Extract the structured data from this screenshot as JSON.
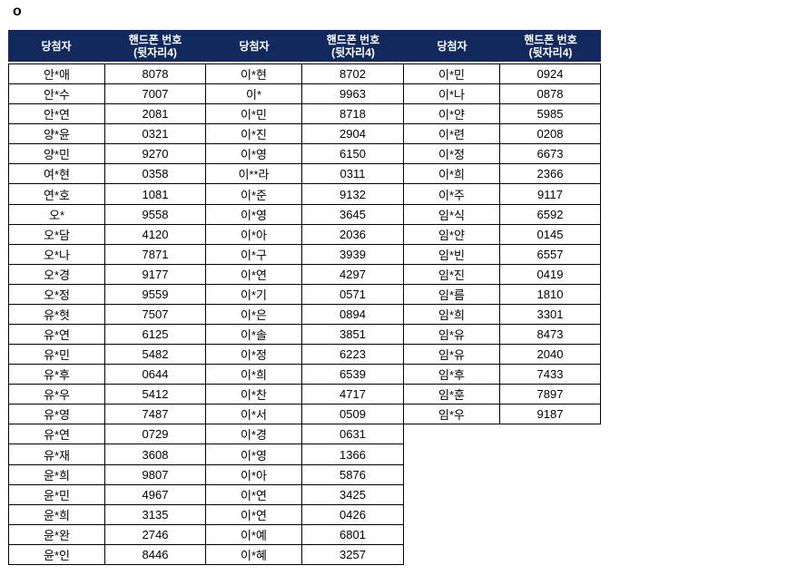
{
  "page": {
    "bullet": "o"
  },
  "table": {
    "header": {
      "winner_label": "당첨자",
      "phone_label_line1": "핸드폰 번호",
      "phone_label_line2": "(뒷자리4)"
    },
    "colors": {
      "header_bg": "#12295E",
      "header_text": "#FFFFFF",
      "border": "#000000",
      "body_text": "#000000"
    },
    "groups": [
      {
        "rows": [
          [
            "안*애",
            "8078"
          ],
          [
            "안*수",
            "7007"
          ],
          [
            "안*연",
            "2081"
          ],
          [
            "양*윤",
            "0321"
          ],
          [
            "양*민",
            "9270"
          ],
          [
            "여*현",
            "0358"
          ],
          [
            "연*호",
            "1081"
          ],
          [
            "오*",
            "9558"
          ],
          [
            "오*담",
            "4120"
          ],
          [
            "오*나",
            "7871"
          ],
          [
            "오*경",
            "9177"
          ],
          [
            "오*정",
            "9559"
          ],
          [
            "유*혓",
            "7507"
          ],
          [
            "유*연",
            "6125"
          ],
          [
            "유*민",
            "5482"
          ],
          [
            "유*후",
            "0644"
          ],
          [
            "유*우",
            "5412"
          ],
          [
            "유*영",
            "7487"
          ],
          [
            "유*연",
            "0729"
          ],
          [
            "유*재",
            "3608"
          ],
          [
            "윤*희",
            "9807"
          ],
          [
            "윤*민",
            "4967"
          ],
          [
            "윤*희",
            "3135"
          ],
          [
            "윤*완",
            "2746"
          ],
          [
            "윤*인",
            "8446"
          ]
        ]
      },
      {
        "rows": [
          [
            "이*현",
            "8702"
          ],
          [
            "이*",
            "9963"
          ],
          [
            "이*민",
            "8718"
          ],
          [
            "이*진",
            "2904"
          ],
          [
            "이*영",
            "6150"
          ],
          [
            "이**라",
            "0311"
          ],
          [
            "이*준",
            "9132"
          ],
          [
            "이*영",
            "3645"
          ],
          [
            "이*아",
            "2036"
          ],
          [
            "이*구",
            "3939"
          ],
          [
            "이*연",
            "4297"
          ],
          [
            "이*기",
            "0571"
          ],
          [
            "이*은",
            "0894"
          ],
          [
            "이*솔",
            "3851"
          ],
          [
            "이*정",
            "6223"
          ],
          [
            "이*희",
            "6539"
          ],
          [
            "이*찬",
            "4717"
          ],
          [
            "이*서",
            "0509"
          ],
          [
            "이*경",
            "0631"
          ],
          [
            "이*영",
            "1366"
          ],
          [
            "이*아",
            "5876"
          ],
          [
            "이*연",
            "3425"
          ],
          [
            "이*연",
            "0426"
          ],
          [
            "이*예",
            "6801"
          ],
          [
            "이*혜",
            "3257"
          ]
        ]
      },
      {
        "rows": [
          [
            "이*민",
            "0924"
          ],
          [
            "이*나",
            "0878"
          ],
          [
            "이*얀",
            "5985"
          ],
          [
            "이*련",
            "0208"
          ],
          [
            "이*정",
            "6673"
          ],
          [
            "이*희",
            "2366"
          ],
          [
            "이*주",
            "9117"
          ],
          [
            "임*식",
            "6592"
          ],
          [
            "임*얀",
            "0145"
          ],
          [
            "임*빈",
            "6557"
          ],
          [
            "임*진",
            "0419"
          ],
          [
            "임*름",
            "1810"
          ],
          [
            "임*희",
            "3301"
          ],
          [
            "임*유",
            "8473"
          ],
          [
            "임*유",
            "2040"
          ],
          [
            "임*후",
            "7433"
          ],
          [
            "임*훈",
            "7897"
          ],
          [
            "임*우",
            "9187"
          ]
        ]
      }
    ]
  }
}
